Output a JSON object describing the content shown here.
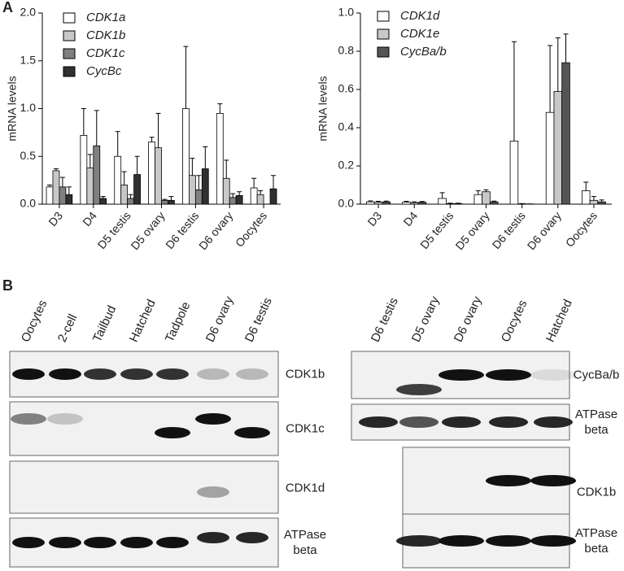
{
  "panel_a": {
    "label": "A"
  },
  "chart_data": [
    {
      "type": "bar",
      "ylabel": "mRNA levels",
      "categories": [
        "D3",
        "D4",
        "D5 testis",
        "D5 ovary",
        "D6 testis",
        "D6 ovary",
        "Oocytes"
      ],
      "series": [
        {
          "name": "CDK1a",
          "color": "#ffffff",
          "values": [
            0.18,
            0.72,
            0.5,
            0.65,
            1.0,
            0.95,
            0.17
          ],
          "errors": [
            0.02,
            0.28,
            0.26,
            0.05,
            0.65,
            0.1,
            0.1
          ]
        },
        {
          "name": "CDK1b",
          "color": "#c8c8c8",
          "values": [
            0.35,
            0.38,
            0.2,
            0.59,
            0.3,
            0.27,
            0.1
          ],
          "errors": [
            0.02,
            0.14,
            0.14,
            0.36,
            0.18,
            0.19,
            0.04
          ]
        },
        {
          "name": "CDK1c",
          "color": "#808080",
          "values": [
            0.18,
            0.61,
            0.06,
            0.04,
            0.15,
            0.07,
            0
          ],
          "errors": [
            0.1,
            0.37,
            0.04,
            0.01,
            0.15,
            0.04,
            0
          ]
        },
        {
          "name": "CycBc",
          "color": "#303030",
          "values": [
            0.1,
            0.06,
            0.31,
            0.04,
            0.37,
            0.09,
            0.16
          ],
          "errors": [
            0.08,
            0.02,
            0.19,
            0.04,
            0.23,
            0.04,
            0.14
          ]
        }
      ],
      "ylim": [
        0,
        2.0
      ],
      "yticks": [
        {
          "value": 0,
          "label": "0.0"
        },
        0.5,
        {
          "value": 1,
          "label": "1.0"
        },
        1.5,
        {
          "value": 2,
          "label": "2.0"
        }
      ]
    },
    {
      "type": "bar",
      "ylabel": "mRNA levels",
      "categories": [
        "D3",
        "D4",
        "D5 testis",
        "D5 ovary",
        "D6 testis",
        "D6 ovary",
        "Oocytes"
      ],
      "series": [
        {
          "name": "CDK1d",
          "color": "#ffffff",
          "values": [
            0.012,
            0.01,
            0.03,
            0.05,
            0.33,
            0.48,
            0.07
          ],
          "errors": [
            0.005,
            0.005,
            0.03,
            0.02,
            0.52,
            0.35,
            0.045
          ]
        },
        {
          "name": "CDK1e",
          "color": "#c8c8c8",
          "values": [
            0.01,
            0.008,
            0.003,
            0.065,
            0.002,
            0.59,
            0.02
          ],
          "errors": [
            0.005,
            0.004,
            0.002,
            0.01,
            0.001,
            0.28,
            0.02
          ]
        },
        {
          "name": "CycBa/b",
          "color": "#555555",
          "values": [
            0.012,
            0.01,
            0.003,
            0.012,
            0.001,
            0.74,
            0.012
          ],
          "errors": [
            0.004,
            0.004,
            0.002,
            0.004,
            0,
            0.15,
            0.01
          ]
        }
      ],
      "ylim": [
        0,
        1.0
      ],
      "yticks": [
        {
          "value": 0,
          "label": "0.0"
        },
        0.2,
        0.4,
        0.6,
        0.8,
        {
          "value": 1,
          "label": "1.0"
        }
      ]
    }
  ],
  "panel_b": {
    "label": "B",
    "left": {
      "lanes": [
        "Oocytes",
        "2-cell",
        "Tailbud",
        "Hatched",
        "Tadpole",
        "D6 ovary",
        "D6 testis"
      ],
      "rows": [
        "CDK1b",
        "CDK1c",
        "CDK1d",
        "ATPase beta"
      ]
    },
    "right": {
      "lanes": [
        "D6 testis",
        "D5 ovary",
        "D6 ovary",
        "Oocytes",
        "Hatched"
      ],
      "rows": [
        "CycBa/b",
        "ATPase beta",
        "CDK1b",
        "ATPase beta"
      ]
    }
  }
}
